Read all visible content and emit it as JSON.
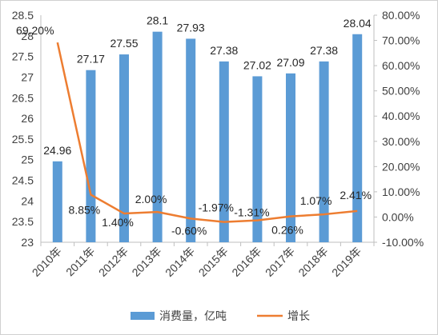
{
  "chart_data": {
    "type": "bar",
    "categories": [
      "2010年",
      "2011年",
      "2012年",
      "2013年",
      "2014年",
      "2015年",
      "2016年",
      "2017年",
      "2018年",
      "2019年"
    ],
    "series": [
      {
        "name": "消费量，亿吨",
        "type": "bar",
        "axis": "left",
        "color": "#5b9bd5",
        "values": [
          24.96,
          27.17,
          27.55,
          28.1,
          27.93,
          27.38,
          27.02,
          27.09,
          27.38,
          28.04
        ],
        "labels": [
          "24.96",
          "27.17",
          "27.55",
          "28.1",
          "27.93",
          "27.38",
          "27.02",
          "27.09",
          "27.38",
          "28.04"
        ]
      },
      {
        "name": "增长",
        "type": "line",
        "axis": "right",
        "color": "#ed7d31",
        "values": [
          69.2,
          8.85,
          1.4,
          2.0,
          -0.6,
          -1.97,
          -1.31,
          0.26,
          1.07,
          2.41
        ],
        "labels": [
          "69.20%",
          "8.85%",
          "1.40%",
          "2.00%",
          "-0.60%",
          "-1.97%",
          "-1.31%",
          "0.26%",
          "1.07%",
          "2.41%"
        ]
      }
    ],
    "y_left": {
      "range": [
        23,
        28.5
      ],
      "ticks": [
        "23",
        "23.5",
        "24",
        "24.5",
        "25",
        "25.5",
        "26",
        "26.5",
        "27",
        "27.5",
        "28",
        "28.5"
      ]
    },
    "y_right": {
      "range": [
        -10,
        80
      ],
      "ticks": [
        "-10.00%",
        "0.00%",
        "10.00%",
        "20.00%",
        "30.00%",
        "40.00%",
        "50.00%",
        "60.00%",
        "70.00%",
        "80.00%"
      ]
    },
    "grid": false,
    "legend": "bottom"
  }
}
